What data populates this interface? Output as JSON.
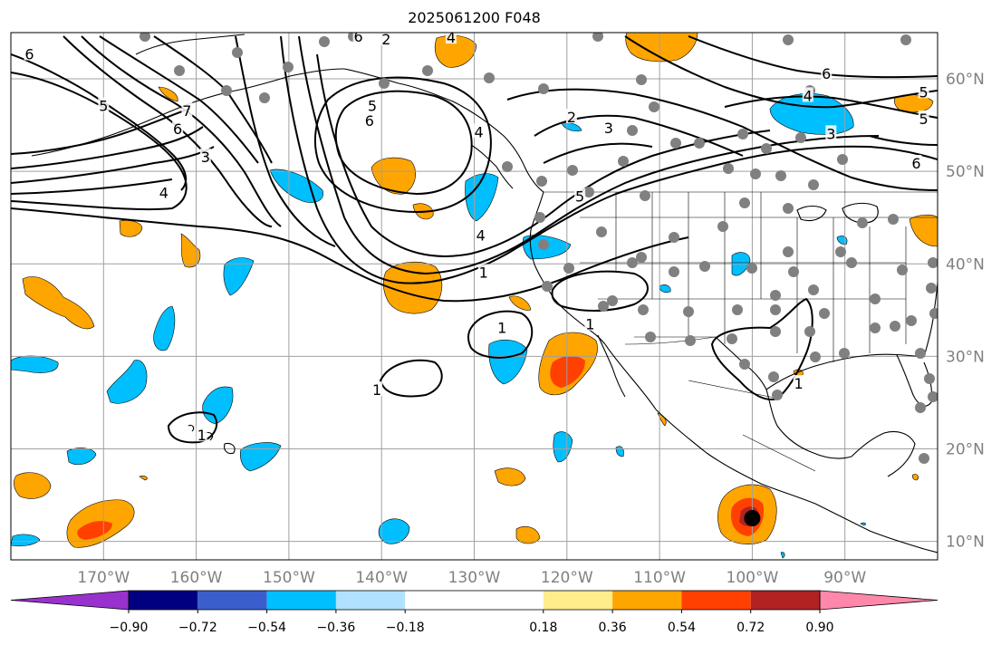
{
  "title": "2025061200 F048",
  "map": {
    "lon_range": [
      -180,
      -80
    ],
    "lat_range": [
      8,
      65
    ],
    "lon_ticks": [
      {
        "lon": -170,
        "label": "170°W"
      },
      {
        "lon": -160,
        "label": "160°W"
      },
      {
        "lon": -150,
        "label": "150°W"
      },
      {
        "lon": -140,
        "label": "140°W"
      },
      {
        "lon": -130,
        "label": "130°W"
      },
      {
        "lon": -120,
        "label": "120°W"
      },
      {
        "lon": -110,
        "label": "110°W"
      },
      {
        "lon": -100,
        "label": "100°W"
      },
      {
        "lon": -90,
        "label": "90°W"
      }
    ],
    "lat_ticks": [
      {
        "lat": 60,
        "label": "60°N"
      },
      {
        "lat": 50,
        "label": "50°N"
      },
      {
        "lat": 40,
        "label": "40°N"
      },
      {
        "lat": 30,
        "label": "30°N"
      },
      {
        "lat": 20,
        "label": "20°N"
      },
      {
        "lat": 10,
        "label": "10°N"
      }
    ],
    "grid": true,
    "colors": {
      "land_outline": "#000000",
      "grid": "#a0a0a0",
      "station": "#808080",
      "marker": "#000000"
    },
    "contour_labels": [
      {
        "text": "6",
        "lon": -178,
        "lat": 62.6
      },
      {
        "text": "5",
        "lon": -170,
        "lat": 57.0
      },
      {
        "text": "6",
        "lon": -162,
        "lat": 54.5
      },
      {
        "text": "7",
        "lon": -161,
        "lat": 56.5
      },
      {
        "text": "3",
        "lon": -159,
        "lat": 51.5
      },
      {
        "text": "4",
        "lon": -163.5,
        "lat": 47.6
      },
      {
        "text": "5",
        "lon": -141,
        "lat": 57.0
      },
      {
        "text": "6",
        "lon": -141.3,
        "lat": 55.4
      },
      {
        "text": "2",
        "lon": -119.5,
        "lat": 55.8
      },
      {
        "text": "3",
        "lon": -115.5,
        "lat": 54.6
      },
      {
        "text": "4",
        "lon": -129.5,
        "lat": 54.2
      },
      {
        "text": "5",
        "lon": -118.6,
        "lat": 47.2
      },
      {
        "text": "4",
        "lon": -129.3,
        "lat": 43.0
      },
      {
        "text": "1",
        "lon": -129,
        "lat": 39.0
      },
      {
        "text": "1",
        "lon": -127,
        "lat": 33.0
      },
      {
        "text": "1",
        "lon": -117.5,
        "lat": 33.4
      },
      {
        "text": "1",
        "lon": -140.5,
        "lat": 26.3
      },
      {
        "text": "1",
        "lon": -159.4,
        "lat": 21.4
      },
      {
        "text": "4",
        "lon": -94,
        "lat": 58.1
      },
      {
        "text": "6",
        "lon": -92,
        "lat": 60.5
      },
      {
        "text": "5",
        "lon": -81.5,
        "lat": 58.5
      },
      {
        "text": "5",
        "lon": -81.5,
        "lat": 55.6
      },
      {
        "text": "6",
        "lon": -82.3,
        "lat": 50.8
      },
      {
        "text": "3",
        "lon": -91.5,
        "lat": 54.0
      },
      {
        "text": "1",
        "lon": -95,
        "lat": 27.0
      },
      {
        "text": "2",
        "lon": -139.5,
        "lat": 64.2
      },
      {
        "text": "6",
        "lon": -142.5,
        "lat": 64.5
      },
      {
        "text": "4",
        "lon": -132.5,
        "lat": 64.4
      }
    ],
    "marker": {
      "lon": -100,
      "lat": 12.5,
      "name": "storm-center"
    }
  },
  "colorbar": {
    "ticks": [
      "−0.90",
      "−0.72",
      "−0.54",
      "−0.36",
      "−0.18",
      "0.18",
      "0.36",
      "0.54",
      "0.72",
      "0.90"
    ],
    "bins": [
      {
        "from": -0.9,
        "to": -0.72,
        "color": "#000080"
      },
      {
        "from": -0.72,
        "to": -0.54,
        "color": "#3a5fcd"
      },
      {
        "from": -0.54,
        "to": -0.36,
        "color": "#00bfff"
      },
      {
        "from": -0.36,
        "to": -0.18,
        "color": "#b0e2ff"
      },
      {
        "from": -0.18,
        "to": 0.18,
        "color": "#ffffff"
      },
      {
        "from": 0.18,
        "to": 0.36,
        "color": "#ffec8b"
      },
      {
        "from": 0.36,
        "to": 0.54,
        "color": "#ffa500"
      },
      {
        "from": 0.54,
        "to": 0.72,
        "color": "#ff4000"
      },
      {
        "from": 0.72,
        "to": 0.9,
        "color": "#b22222"
      }
    ],
    "under_color": "#9932cc",
    "over_color": "#ff88aa"
  }
}
